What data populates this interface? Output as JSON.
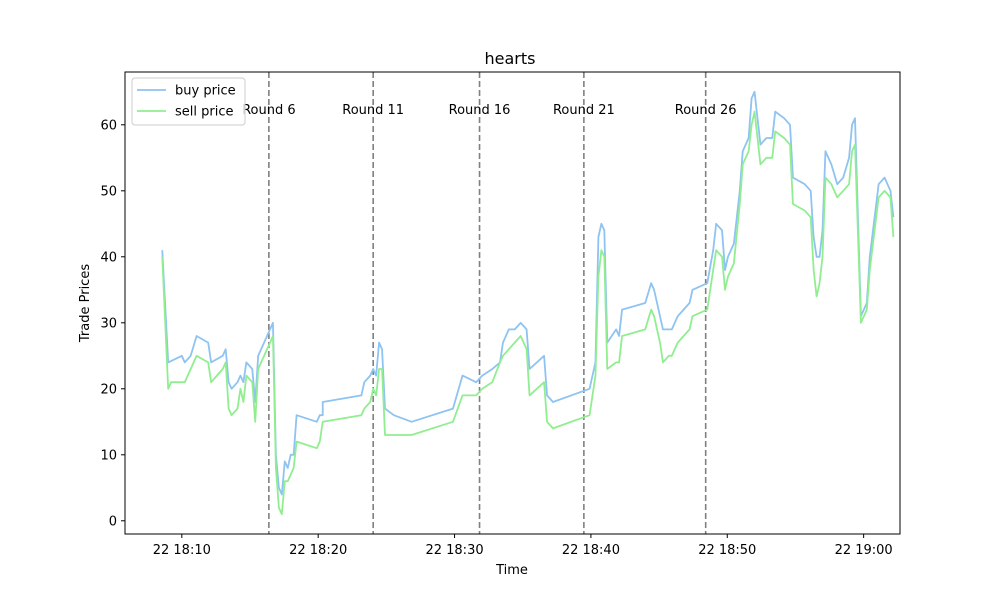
{
  "chart_data": {
    "type": "line",
    "title": "hearts",
    "xlabel": "Time",
    "ylabel": "Trade Prices",
    "x_is_time": true,
    "xlim": [
      "18:05:50",
      "19:02:40"
    ],
    "ylim": [
      -2,
      68
    ],
    "x_ticks": [
      {
        "time": "18:10",
        "label": "22 18:10"
      },
      {
        "time": "18:20",
        "label": "22 18:20"
      },
      {
        "time": "18:30",
        "label": "22 18:30"
      },
      {
        "time": "18:40",
        "label": "22 18:40"
      },
      {
        "time": "18:50",
        "label": "22 18:50"
      },
      {
        "time": "19:00",
        "label": "22 19:00"
      }
    ],
    "y_ticks": [
      0,
      10,
      20,
      30,
      40,
      50,
      60
    ],
    "grid": false,
    "legend": {
      "position": "top-left"
    },
    "series": [
      {
        "name": "buy price",
        "color": "#8ec3f2",
        "points": [
          [
            "18:08:34",
            41
          ],
          [
            "18:09:00",
            24
          ],
          [
            "18:10:00",
            25
          ],
          [
            "18:10:13",
            24
          ],
          [
            "18:10:39",
            25
          ],
          [
            "18:11:05",
            28
          ],
          [
            "18:11:56",
            27
          ],
          [
            "18:12:09",
            24
          ],
          [
            "18:13:00",
            25
          ],
          [
            "18:13:13",
            26
          ],
          [
            "18:13:26",
            21
          ],
          [
            "18:13:39",
            20
          ],
          [
            "18:14:05",
            21
          ],
          [
            "18:14:18",
            22
          ],
          [
            "18:14:31",
            21
          ],
          [
            "18:14:44",
            24
          ],
          [
            "18:15:10",
            23
          ],
          [
            "18:15:23",
            18
          ],
          [
            "18:15:36",
            25
          ],
          [
            "18:15:49",
            26
          ],
          [
            "18:16:15",
            28
          ],
          [
            "18:16:41",
            30
          ],
          [
            "18:16:54",
            10
          ],
          [
            "18:17:07",
            5
          ],
          [
            "18:17:20",
            4
          ],
          [
            "18:17:33",
            9
          ],
          [
            "18:17:46",
            8
          ],
          [
            "18:17:59",
            10
          ],
          [
            "18:18:12",
            10
          ],
          [
            "18:18:25",
            16
          ],
          [
            "18:19:54",
            15
          ],
          [
            "18:20:07",
            16
          ],
          [
            "18:20:20",
            16
          ],
          [
            "18:20:20",
            18
          ],
          [
            "18:23:10",
            19
          ],
          [
            "18:23:23",
            21
          ],
          [
            "18:23:49",
            22
          ],
          [
            "18:24:02",
            23
          ],
          [
            "18:24:15",
            22
          ],
          [
            "18:24:28",
            27
          ],
          [
            "18:24:41",
            26
          ],
          [
            "18:24:54",
            17
          ],
          [
            "18:25:33",
            16
          ],
          [
            "18:26:51",
            15
          ],
          [
            "18:29:53",
            17
          ],
          [
            "18:30:35",
            22
          ],
          [
            "18:31:35",
            21
          ],
          [
            "18:32:02",
            22
          ],
          [
            "18:32:46",
            23
          ],
          [
            "18:33:20",
            24
          ],
          [
            "18:33:33",
            27
          ],
          [
            "18:33:59",
            29
          ],
          [
            "18:34:25",
            29
          ],
          [
            "18:34:51",
            30
          ],
          [
            "18:35:17",
            29
          ],
          [
            "18:35:30",
            23
          ],
          [
            "18:36:34",
            25
          ],
          [
            "18:36:47",
            19
          ],
          [
            "18:37:13",
            18
          ],
          [
            "18:39:54",
            20
          ],
          [
            "18:40:07",
            22
          ],
          [
            "18:40:20",
            24
          ],
          [
            "18:40:33",
            43
          ],
          [
            "18:40:46",
            45
          ],
          [
            "18:40:59",
            44
          ],
          [
            "18:41:12",
            27
          ],
          [
            "18:41:51",
            29
          ],
          [
            "18:42:04",
            28
          ],
          [
            "18:42:17",
            32
          ],
          [
            "18:43:59",
            33
          ],
          [
            "18:44:25",
            36
          ],
          [
            "18:44:38",
            35
          ],
          [
            "18:45:04",
            31
          ],
          [
            "18:45:17",
            29
          ],
          [
            "18:45:43",
            29
          ],
          [
            "18:45:56",
            29
          ],
          [
            "18:46:22",
            31
          ],
          [
            "18:46:48",
            32
          ],
          [
            "18:47:14",
            33
          ],
          [
            "18:47:27",
            35
          ],
          [
            "18:48:32",
            36
          ],
          [
            "18:48:58",
            41
          ],
          [
            "18:49:11",
            45
          ],
          [
            "18:49:37",
            44
          ],
          [
            "18:49:50",
            38
          ],
          [
            "18:50:03",
            40
          ],
          [
            "18:50:29",
            42
          ],
          [
            "18:50:55",
            50
          ],
          [
            "18:51:08",
            56
          ],
          [
            "18:51:21",
            57
          ],
          [
            "18:51:34",
            58
          ],
          [
            "18:51:47",
            64
          ],
          [
            "18:52:00",
            65
          ],
          [
            "18:52:26",
            57
          ],
          [
            "18:52:52",
            58
          ],
          [
            "18:53:18",
            58
          ],
          [
            "18:53:31",
            62
          ],
          [
            "18:54:10",
            61
          ],
          [
            "18:54:36",
            60
          ],
          [
            "18:54:49",
            52
          ],
          [
            "18:55:41",
            51
          ],
          [
            "18:56:07",
            50
          ],
          [
            "18:56:20",
            43
          ],
          [
            "18:56:33",
            40
          ],
          [
            "18:56:46",
            40
          ],
          [
            "18:56:59",
            44
          ],
          [
            "18:57:12",
            56
          ],
          [
            "18:57:38",
            54
          ],
          [
            "18:58:04",
            51
          ],
          [
            "18:58:30",
            52
          ],
          [
            "18:58:56",
            55
          ],
          [
            "18:59:09",
            60
          ],
          [
            "18:59:22",
            61
          ],
          [
            "18:59:48",
            31
          ],
          [
            "19:00:14",
            33
          ],
          [
            "19:00:27",
            40
          ],
          [
            "19:01:06",
            51
          ],
          [
            "19:01:32",
            52
          ],
          [
            "19:01:58",
            50
          ],
          [
            "19:02:11",
            46
          ]
        ]
      },
      {
        "name": "sell price",
        "color": "#90ee90",
        "points": [
          [
            "18:08:34",
            40
          ],
          [
            "18:09:00",
            20
          ],
          [
            "18:09:13",
            21
          ],
          [
            "18:10:13",
            21
          ],
          [
            "18:10:26",
            22
          ],
          [
            "18:10:39",
            23
          ],
          [
            "18:11:05",
            25
          ],
          [
            "18:11:56",
            24
          ],
          [
            "18:12:09",
            21
          ],
          [
            "18:13:00",
            23
          ],
          [
            "18:13:13",
            24
          ],
          [
            "18:13:26",
            17
          ],
          [
            "18:13:39",
            16
          ],
          [
            "18:14:05",
            17
          ],
          [
            "18:14:18",
            20
          ],
          [
            "18:14:31",
            18
          ],
          [
            "18:14:44",
            22
          ],
          [
            "18:15:10",
            21
          ],
          [
            "18:15:23",
            15
          ],
          [
            "18:15:36",
            23
          ],
          [
            "18:15:49",
            24
          ],
          [
            "18:16:15",
            26
          ],
          [
            "18:16:41",
            28
          ],
          [
            "18:16:54",
            8
          ],
          [
            "18:17:07",
            2
          ],
          [
            "18:17:20",
            1
          ],
          [
            "18:17:33",
            6
          ],
          [
            "18:17:46",
            6
          ],
          [
            "18:17:59",
            7
          ],
          [
            "18:18:12",
            8
          ],
          [
            "18:18:25",
            12
          ],
          [
            "18:19:54",
            11
          ],
          [
            "18:20:07",
            12
          ],
          [
            "18:20:20",
            15
          ],
          [
            "18:23:10",
            16
          ],
          [
            "18:23:23",
            17
          ],
          [
            "18:23:49",
            18
          ],
          [
            "18:24:02",
            20
          ],
          [
            "18:24:15",
            19
          ],
          [
            "18:24:28",
            23
          ],
          [
            "18:24:41",
            23
          ],
          [
            "18:24:54",
            13
          ],
          [
            "18:26:51",
            13
          ],
          [
            "18:29:53",
            15
          ],
          [
            "18:30:35",
            19
          ],
          [
            "18:31:35",
            19
          ],
          [
            "18:32:02",
            20
          ],
          [
            "18:32:46",
            21
          ],
          [
            "18:33:20",
            24
          ],
          [
            "18:33:33",
            25
          ],
          [
            "18:33:59",
            26
          ],
          [
            "18:34:25",
            27
          ],
          [
            "18:34:51",
            28
          ],
          [
            "18:35:17",
            26
          ],
          [
            "18:35:30",
            19
          ],
          [
            "18:36:34",
            21
          ],
          [
            "18:36:47",
            15
          ],
          [
            "18:37:13",
            14
          ],
          [
            "18:39:54",
            16
          ],
          [
            "18:40:07",
            19
          ],
          [
            "18:40:20",
            22
          ],
          [
            "18:40:33",
            37
          ],
          [
            "18:40:46",
            41
          ],
          [
            "18:40:59",
            40
          ],
          [
            "18:41:12",
            23
          ],
          [
            "18:41:51",
            24
          ],
          [
            "18:42:04",
            24
          ],
          [
            "18:42:17",
            28
          ],
          [
            "18:43:59",
            29
          ],
          [
            "18:44:25",
            32
          ],
          [
            "18:44:38",
            31
          ],
          [
            "18:45:04",
            27
          ],
          [
            "18:45:17",
            24
          ],
          [
            "18:45:43",
            25
          ],
          [
            "18:45:56",
            25
          ],
          [
            "18:46:22",
            27
          ],
          [
            "18:46:48",
            28
          ],
          [
            "18:47:14",
            29
          ],
          [
            "18:47:27",
            31
          ],
          [
            "18:48:32",
            32
          ],
          [
            "18:48:58",
            38
          ],
          [
            "18:49:11",
            41
          ],
          [
            "18:49:37",
            40
          ],
          [
            "18:49:50",
            35
          ],
          [
            "18:50:03",
            37
          ],
          [
            "18:50:29",
            39
          ],
          [
            "18:50:55",
            48
          ],
          [
            "18:51:08",
            54
          ],
          [
            "18:51:21",
            55
          ],
          [
            "18:51:34",
            56
          ],
          [
            "18:51:47",
            60
          ],
          [
            "18:52:00",
            62
          ],
          [
            "18:52:26",
            54
          ],
          [
            "18:52:52",
            55
          ],
          [
            "18:53:18",
            55
          ],
          [
            "18:53:31",
            59
          ],
          [
            "18:54:10",
            58
          ],
          [
            "18:54:36",
            57
          ],
          [
            "18:54:49",
            48
          ],
          [
            "18:55:41",
            47
          ],
          [
            "18:56:07",
            46
          ],
          [
            "18:56:20",
            38
          ],
          [
            "18:56:33",
            34
          ],
          [
            "18:56:46",
            36
          ],
          [
            "18:56:59",
            40
          ],
          [
            "18:57:12",
            52
          ],
          [
            "18:57:38",
            51
          ],
          [
            "18:58:04",
            49
          ],
          [
            "18:58:30",
            50
          ],
          [
            "18:58:56",
            51
          ],
          [
            "18:59:09",
            56
          ],
          [
            "18:59:22",
            57
          ],
          [
            "18:59:48",
            30
          ],
          [
            "19:00:14",
            32
          ],
          [
            "19:00:27",
            38
          ],
          [
            "19:01:06",
            49
          ],
          [
            "19:01:32",
            50
          ],
          [
            "19:01:58",
            49
          ],
          [
            "19:02:11",
            43
          ]
        ]
      }
    ],
    "round_markers": [
      {
        "time": "18:16:23",
        "label": "Round 6"
      },
      {
        "time": "18:24:02",
        "label": "Round 11"
      },
      {
        "time": "18:31:50",
        "label": "Round 16"
      },
      {
        "time": "18:39:29",
        "label": "Round 21"
      },
      {
        "time": "18:48:25",
        "label": "Round 26"
      }
    ],
    "marker_style": {
      "color": "#808080",
      "dash": "dashed"
    }
  }
}
